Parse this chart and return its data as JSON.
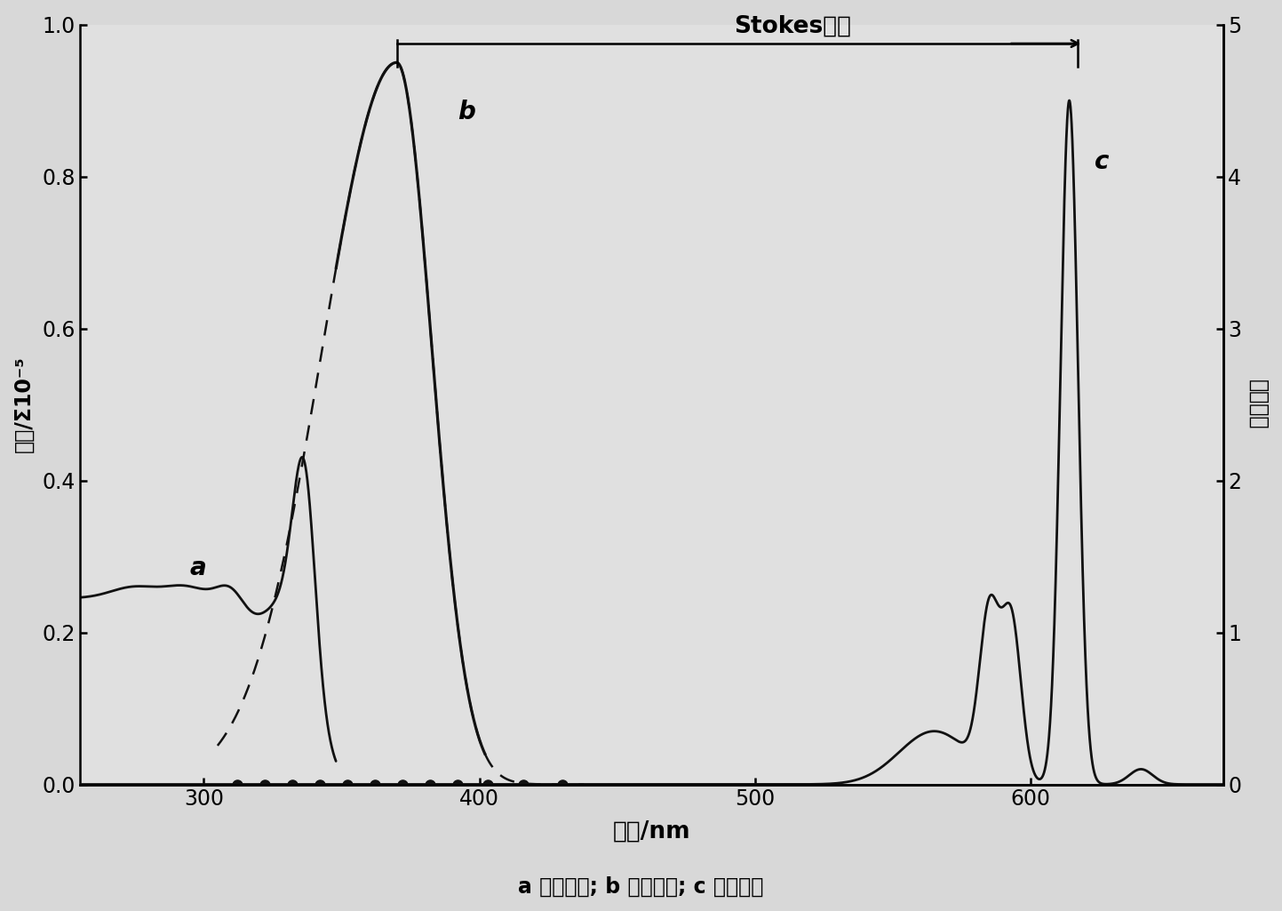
{
  "xlabel": "波长/nm",
  "ylabel_left": "吸收/Σ10⁻⁵",
  "ylabel_right": "荧光强度",
  "xlim": [
    255,
    670
  ],
  "ylim_left": [
    0,
    1.0
  ],
  "ylim_right": [
    0,
    5
  ],
  "xticks": [
    300,
    400,
    500,
    600
  ],
  "yticks_left": [
    0,
    0.2,
    0.4,
    0.6,
    0.8,
    1.0
  ],
  "yticks_right": [
    0,
    1,
    2,
    3,
    4,
    5
  ],
  "stokes_label": "Stokes位移",
  "stokes_x1": 370,
  "stokes_x2": 617,
  "stokes_y": 0.975,
  "caption": "a 吸收光谱; b 激发光谱; c 发射光谱",
  "bg_color": "#e8e8e8",
  "line_color": "#111111"
}
